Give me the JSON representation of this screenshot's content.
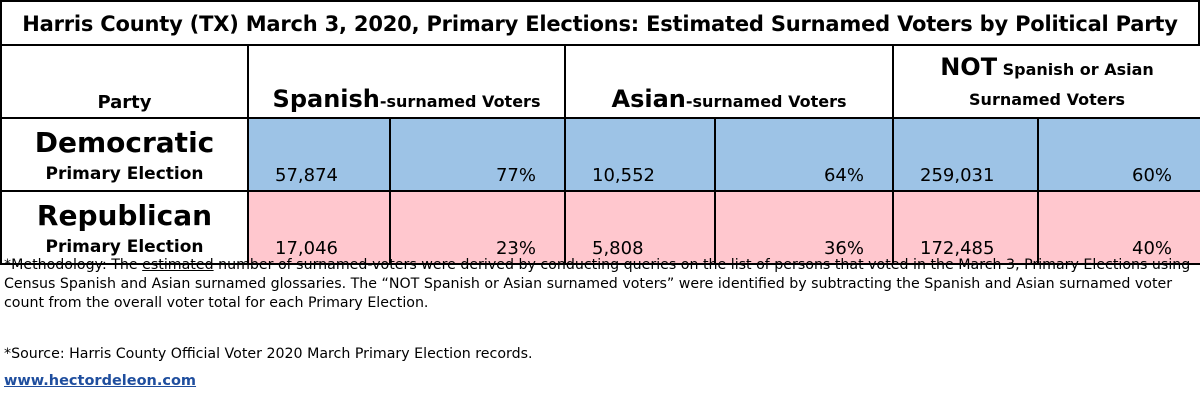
{
  "title": "Harris County (TX) March 3, 2020, Primary Elections: Estimated Surnamed Voters by Political Party",
  "header": {
    "party": "Party",
    "spanish_big": "Spanish",
    "spanish_small": "-surnamed Voters",
    "asian_big": "Asian",
    "asian_small": "-surnamed Voters",
    "not_big": "NOT",
    "not_small_1": "Spanish or Asian",
    "not_small_2": "Surnamed Voters"
  },
  "rows": [
    {
      "party": "Democratic",
      "sub": "Primary Election",
      "spanish_count": "57,874",
      "spanish_pct": "77%",
      "asian_count": "10,552",
      "asian_pct": "64%",
      "not_count": "259,031",
      "not_pct": "60%"
    },
    {
      "party": "Republican",
      "sub": "Primary Election",
      "spanish_count": "17,046",
      "spanish_pct": "23%",
      "asian_count": "5,808",
      "asian_pct": "36%",
      "not_count": "172,485",
      "not_pct": "40%"
    }
  ],
  "methodology": {
    "prefix": "*Methodology: The ",
    "emph": "estimated",
    "rest": " number of surnamed-voters were derived by conducting queries on the list of persons that voted in the March 3, Primary Elections using Census Spanish and Asian surnamed glossaries. The “NOT Spanish or Asian surnamed voters” were identified by subtracting the Spanish and Asian surnamed voter count from the overall voter total for each Primary Election."
  },
  "source": "*Source: Harris County Official Voter 2020 March Primary Election records.",
  "website": "www.hectordeleon.com",
  "colors": {
    "democratic": "#9DC3E6",
    "republican": "#FFC7CE",
    "link": "#1F4E9E"
  }
}
